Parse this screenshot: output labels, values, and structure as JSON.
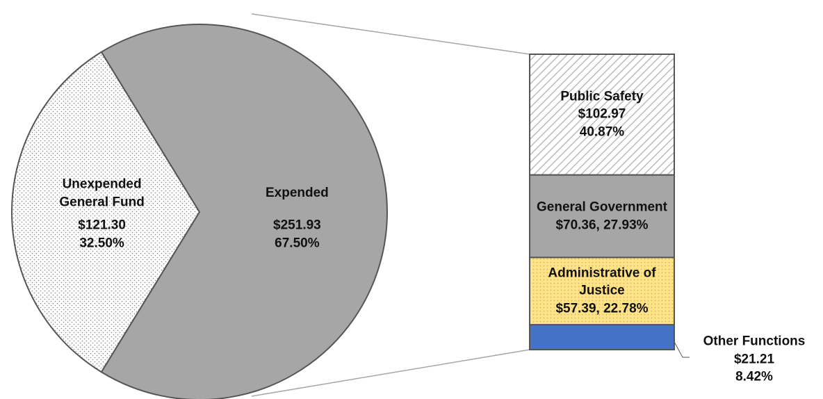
{
  "chart_data": [
    {
      "type": "pie",
      "categories": [
        "Unexpended General Fund",
        "Expended"
      ],
      "values": [
        121.3,
        251.93
      ],
      "percents": [
        32.5,
        67.5
      ],
      "value_labels": [
        "$121.30\n32.50%",
        "$251.93\n67.50%"
      ],
      "colors": [
        "#ffffff",
        "#a6a6a6"
      ],
      "patterns": [
        "dots",
        "none"
      ]
    },
    {
      "type": "bar",
      "categories": [
        "Public Safety",
        "General Government",
        "Administrative of Justice",
        "Other Functions"
      ],
      "values": [
        102.97,
        70.36,
        57.39,
        21.21
      ],
      "percents": [
        40.87,
        27.93,
        22.78,
        8.42
      ],
      "value_labels": [
        "$102.97\n40.87%",
        "$70.36, 27.93%",
        "$57.39, 22.78%",
        "$21.21\n8.42%"
      ],
      "colors": [
        "#ffffff",
        "#a6a6a6",
        "#ffe38a",
        "#4472c4"
      ],
      "patterns": [
        "hatch",
        "none",
        "crosshatch",
        "none"
      ]
    }
  ]
}
